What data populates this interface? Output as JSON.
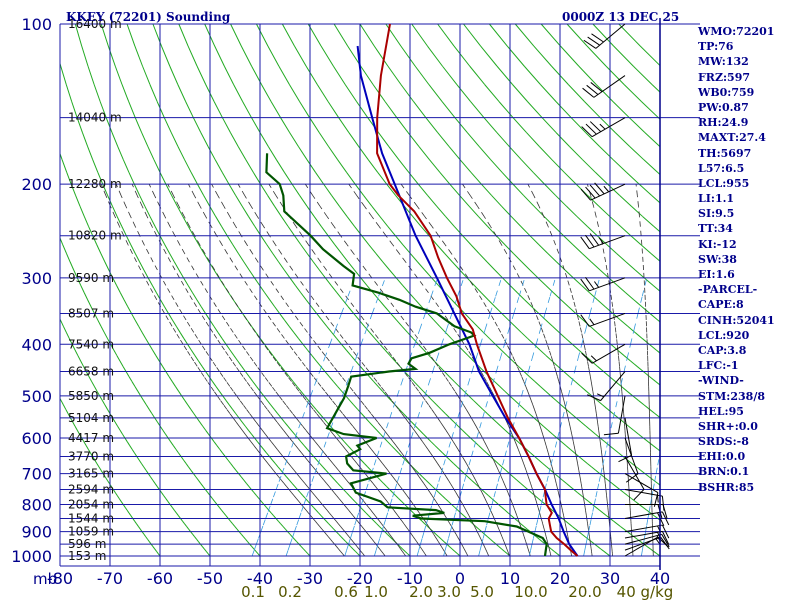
{
  "header": {
    "title": "KKEY (72201) Sounding",
    "datetime": "0000Z 13 DEC 25"
  },
  "colors": {
    "frame": "#00008b",
    "grid": "#1a1aa8",
    "dry_adiabat": "#22aa22",
    "moist_adiabat": "#333333",
    "mixing_ratio": "#3399dd",
    "temperature": "#aa0000",
    "dewpoint": "#005500",
    "parcel": "#0000bb",
    "mixing_label": "#555500",
    "index_text": "#00008b"
  },
  "chart_data": {
    "type": "skew-t",
    "title": "KKEY (72201) Sounding",
    "pressure_unit": "mb",
    "temperature_unit": "C",
    "pressure_range": [
      1000,
      100
    ],
    "temperature_range": [
      -80,
      40
    ],
    "pressure_levels": [
      {
        "label": "100",
        "p": 100
      },
      {
        "label": "200",
        "p": 200
      },
      {
        "label": "300",
        "p": 300
      },
      {
        "label": "400",
        "p": 400
      },
      {
        "label": "500",
        "p": 500
      },
      {
        "label": "600",
        "p": 600
      },
      {
        "label": "700",
        "p": 700
      },
      {
        "label": "800",
        "p": 800
      },
      {
        "label": "900",
        "p": 900
      },
      {
        "label": "1000",
        "p": 1000
      }
    ],
    "height_levels": [
      {
        "label": "16400 m",
        "p": 100
      },
      {
        "label": "14040 m",
        "p": 150
      },
      {
        "label": "12280 m",
        "p": 200
      },
      {
        "label": "10820 m",
        "p": 250
      },
      {
        "label": "9590 m",
        "p": 300
      },
      {
        "label": "8507 m",
        "p": 350
      },
      {
        "label": "7540 m",
        "p": 400
      },
      {
        "label": "6658 m",
        "p": 450
      },
      {
        "label": "5850 m",
        "p": 500
      },
      {
        "label": "5104 m",
        "p": 550
      },
      {
        "label": "4417 m",
        "p": 600
      },
      {
        "label": "3770 m",
        "p": 650
      },
      {
        "label": "3165 m",
        "p": 700
      },
      {
        "label": "2594 m",
        "p": 750
      },
      {
        "label": "2054 m",
        "p": 800
      },
      {
        "label": "1544 m",
        "p": 850
      },
      {
        "label": "1059 m",
        "p": 900
      },
      {
        "label": "596 m",
        "p": 950
      },
      {
        "label": "153 m",
        "p": 1000
      }
    ],
    "temperature_ticks": [
      "-80",
      "-70",
      "-60",
      "-50",
      "-40",
      "-30",
      "-20",
      "-10",
      "0",
      "10",
      "20",
      "30",
      "40"
    ],
    "axis_unit_label": "mb",
    "mixing_ratio_labels": [
      "0.1",
      "0.2",
      "0.6",
      "1.0",
      "2.0",
      "3.0",
      "5.0",
      "10.0",
      "20.0",
      "40 g/kg"
    ],
    "temperature_profile": [
      [
        1000,
        23.5
      ],
      [
        975,
        21.5
      ],
      [
        950,
        19.5
      ],
      [
        925,
        17.3
      ],
      [
        900,
        15.5
      ],
      [
        875,
        14.5
      ],
      [
        850,
        13.5
      ],
      [
        830,
        13.5
      ],
      [
        800,
        11.5
      ],
      [
        775,
        10.5
      ],
      [
        750,
        9.5
      ],
      [
        700,
        6
      ],
      [
        650,
        2.5
      ],
      [
        600,
        -1.5
      ],
      [
        550,
        -6
      ],
      [
        500,
        -10.5
      ],
      [
        450,
        -15.5
      ],
      [
        400,
        -20.5
      ],
      [
        375,
        -23
      ],
      [
        350,
        -27
      ],
      [
        325,
        -30
      ],
      [
        300,
        -34
      ],
      [
        275,
        -38
      ],
      [
        250,
        -42
      ],
      [
        225,
        -48
      ],
      [
        210,
        -53
      ],
      [
        200,
        -56
      ],
      [
        175,
        -62
      ],
      [
        150,
        -66
      ],
      [
        125,
        -70
      ],
      [
        100,
        -74
      ]
    ],
    "dewpoint_profile": [
      [
        1000,
        17
      ],
      [
        975,
        16.5
      ],
      [
        950,
        16
      ],
      [
        925,
        14.5
      ],
      [
        900,
        11
      ],
      [
        880,
        8
      ],
      [
        860,
        1
      ],
      [
        850,
        -12
      ],
      [
        840,
        -14
      ],
      [
        830,
        -8
      ],
      [
        820,
        -10
      ],
      [
        810,
        -20
      ],
      [
        790,
        -22
      ],
      [
        760,
        -28
      ],
      [
        730,
        -30
      ],
      [
        700,
        -24
      ],
      [
        690,
        -31
      ],
      [
        670,
        -33
      ],
      [
        650,
        -34
      ],
      [
        630,
        -32
      ],
      [
        620,
        -33
      ],
      [
        600,
        -30
      ],
      [
        590,
        -37
      ],
      [
        575,
        -41
      ],
      [
        555,
        -41
      ],
      [
        530,
        -41
      ],
      [
        505,
        -41
      ],
      [
        480,
        -41.5
      ],
      [
        460,
        -42
      ],
      [
        450,
        -35
      ],
      [
        445,
        -30
      ],
      [
        435,
        -32
      ],
      [
        425,
        -32
      ],
      [
        415,
        -29
      ],
      [
        400,
        -26
      ],
      [
        385,
        -22
      ],
      [
        380,
        -23
      ],
      [
        370,
        -27
      ],
      [
        350,
        -32
      ],
      [
        340,
        -37
      ],
      [
        330,
        -41
      ],
      [
        320,
        -46
      ],
      [
        310,
        -52
      ],
      [
        295,
        -53
      ],
      [
        285,
        -56
      ],
      [
        265,
        -62
      ],
      [
        250,
        -66
      ],
      [
        225,
        -74
      ],
      [
        210,
        -76
      ],
      [
        200,
        -78
      ],
      [
        190,
        -82
      ],
      [
        175,
        -84
      ]
    ],
    "parcel_profile": [
      [
        1000,
        23.5
      ],
      [
        950,
        20.5
      ],
      [
        900,
        18
      ],
      [
        850,
        15.5
      ],
      [
        800,
        12.5
      ],
      [
        750,
        9.5
      ],
      [
        700,
        6
      ],
      [
        650,
        2.5
      ],
      [
        600,
        -1.5
      ],
      [
        550,
        -6.5
      ],
      [
        500,
        -11.5
      ],
      [
        450,
        -17
      ],
      [
        400,
        -22
      ],
      [
        350,
        -28.5
      ],
      [
        300,
        -36
      ],
      [
        250,
        -45
      ],
      [
        200,
        -55
      ],
      [
        175,
        -61
      ],
      [
        150,
        -67
      ],
      [
        125,
        -74
      ],
      [
        110,
        -78
      ]
    ],
    "wind_barbs": [
      {
        "p": 1000,
        "dir": 60,
        "spd": 10
      },
      {
        "p": 975,
        "dir": 70,
        "spd": 15
      },
      {
        "p": 950,
        "dir": 75,
        "spd": 15
      },
      {
        "p": 925,
        "dir": 80,
        "spd": 15
      },
      {
        "p": 900,
        "dir": 80,
        "spd": 15
      },
      {
        "p": 850,
        "dir": 80,
        "spd": 20
      },
      {
        "p": 800,
        "dir": 90,
        "spd": 20
      },
      {
        "p": 750,
        "dir": 100,
        "spd": 15
      },
      {
        "p": 700,
        "dir": 120,
        "spd": 10
      },
      {
        "p": 650,
        "dir": 150,
        "spd": 10
      },
      {
        "p": 600,
        "dir": 160,
        "spd": 10
      },
      {
        "p": 550,
        "dir": 170,
        "spd": 10
      },
      {
        "p": 500,
        "dir": 190,
        "spd": 10
      },
      {
        "p": 450,
        "dir": 220,
        "spd": 15
      },
      {
        "p": 400,
        "dir": 240,
        "spd": 15
      },
      {
        "p": 350,
        "dir": 250,
        "spd": 15
      },
      {
        "p": 300,
        "dir": 250,
        "spd": 25
      },
      {
        "p": 250,
        "dir": 250,
        "spd": 35
      },
      {
        "p": 200,
        "dir": 245,
        "spd": 45
      },
      {
        "p": 150,
        "dir": 240,
        "spd": 35
      },
      {
        "p": 125,
        "dir": 235,
        "spd": 30
      },
      {
        "p": 100,
        "dir": 230,
        "spd": 30
      }
    ]
  },
  "indices": [
    "WMO:72201",
    "TP:76",
    "MW:132",
    "FRZ:597",
    "WB0:759",
    "PW:0.87",
    "RH:24.9",
    "MAXT:27.4",
    "TH:5697",
    "L57:6.5",
    "LCL:955",
    "LI:1.1",
    "SI:9.5",
    "TT:34",
    "KI:-12",
    "SW:38",
    "EI:1.6",
    "-PARCEL-",
    "CAPE:8",
    "CINH:52041",
    "LCL:920",
    "CAP:3.8",
    "LFC:-1",
    "-WIND-",
    "STM:238/8",
    "HEL:95",
    "SHR+:0.0",
    "SRDS:-8",
    "EHI:0.0",
    "BRN:0.1",
    "BSHR:85"
  ]
}
